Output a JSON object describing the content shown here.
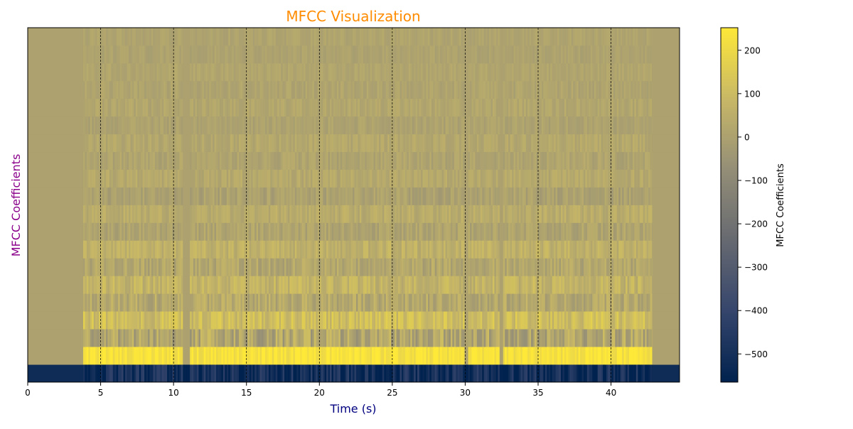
{
  "chart_data": {
    "type": "heatmap",
    "title": "MFCC Visualization",
    "xlabel": "Time (s)",
    "ylabel": "MFCC Coefficients",
    "xlim": [
      0,
      44.7
    ],
    "x_ticks": [
      0,
      5,
      10,
      15,
      20,
      25,
      30,
      35,
      40
    ],
    "x_tick_labels": [
      "0",
      "5",
      "10",
      "15",
      "20",
      "25",
      "30",
      "35",
      "40"
    ],
    "vertical_gridlines_at": [
      5,
      10,
      15,
      20,
      25,
      30,
      35,
      40
    ],
    "n_coefficients": 20,
    "active_time_range": [
      3.8,
      42.8
    ],
    "coefficient_row_means": [
      -520,
      230,
      20,
      110,
      30,
      70,
      20,
      60,
      10,
      40,
      0,
      30,
      10,
      25,
      5,
      20,
      10,
      15,
      5,
      10
    ],
    "coefficient_row_spread": [
      110,
      40,
      90,
      60,
      60,
      50,
      50,
      40,
      40,
      35,
      35,
      30,
      30,
      30,
      25,
      25,
      25,
      20,
      20,
      20
    ],
    "silent_gaps": [
      [
        10.6,
        11.1
      ],
      [
        32.3,
        32.6
      ],
      [
        29.9,
        30.1
      ]
    ],
    "colormap": {
      "name": "cividis",
      "stops": [
        "#00224e",
        "#35456c",
        "#666970",
        "#948e77",
        "#c8b866",
        "#fee838"
      ]
    },
    "colorbar": {
      "label": "MFCC Coefficients",
      "range": [
        -565,
        252
      ],
      "ticks": [
        200,
        100,
        0,
        -100,
        -200,
        -300,
        -400,
        -500
      ],
      "tick_labels": [
        "200",
        "100",
        "0",
        "−100",
        "−200",
        "−300",
        "−400",
        "−500"
      ]
    },
    "colors": {
      "title": "#ff8c00",
      "xlabel": "#000080",
      "ylabel": "#8b008b",
      "background_value": 0
    }
  }
}
